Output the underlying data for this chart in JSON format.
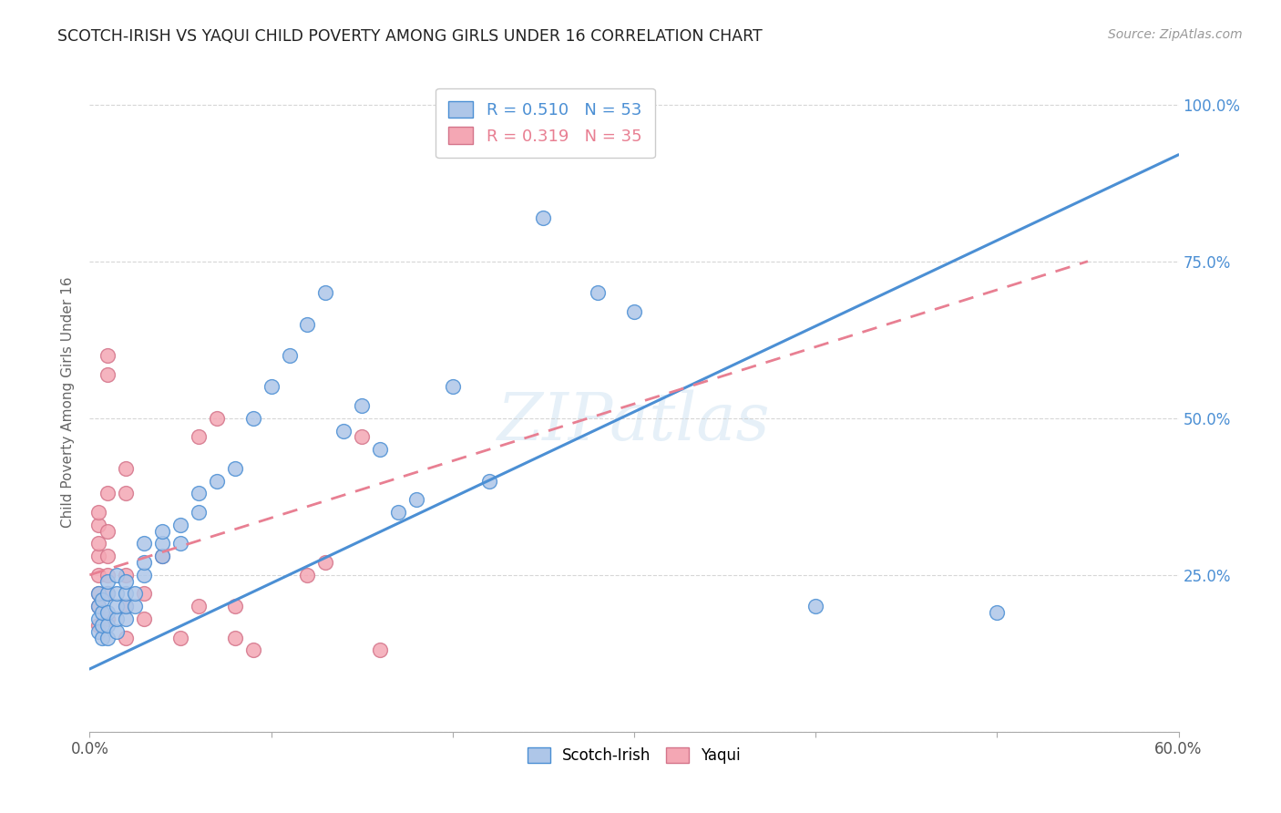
{
  "title": "SCOTCH-IRISH VS YAQUI CHILD POVERTY AMONG GIRLS UNDER 16 CORRELATION CHART",
  "source": "Source: ZipAtlas.com",
  "ylabel": "Child Poverty Among Girls Under 16",
  "xlim": [
    0.0,
    0.6
  ],
  "ylim": [
    0.0,
    1.05
  ],
  "xticks": [
    0.0,
    0.1,
    0.2,
    0.3,
    0.4,
    0.5,
    0.6
  ],
  "yticks": [
    0.0,
    0.25,
    0.5,
    0.75,
    1.0
  ],
  "watermark": "ZIPatlas",
  "scotch_irish_color": "#aec6e8",
  "yaqui_color": "#f4a7b4",
  "scotch_irish_line_color": "#4b8fd4",
  "yaqui_line_color": "#e87f92",
  "scotch_irish_R": 0.51,
  "scotch_irish_N": 53,
  "yaqui_R": 0.319,
  "yaqui_N": 35,
  "si_line": [
    0.0,
    0.1,
    0.6,
    0.92
  ],
  "yq_line": [
    0.0,
    0.25,
    0.55,
    0.75
  ],
  "scotch_irish_points": [
    [
      0.005,
      0.18
    ],
    [
      0.005,
      0.16
    ],
    [
      0.005,
      0.2
    ],
    [
      0.005,
      0.22
    ],
    [
      0.007,
      0.15
    ],
    [
      0.007,
      0.17
    ],
    [
      0.007,
      0.19
    ],
    [
      0.007,
      0.21
    ],
    [
      0.01,
      0.15
    ],
    [
      0.01,
      0.17
    ],
    [
      0.01,
      0.19
    ],
    [
      0.01,
      0.22
    ],
    [
      0.01,
      0.24
    ],
    [
      0.015,
      0.16
    ],
    [
      0.015,
      0.18
    ],
    [
      0.015,
      0.2
    ],
    [
      0.015,
      0.22
    ],
    [
      0.015,
      0.25
    ],
    [
      0.02,
      0.18
    ],
    [
      0.02,
      0.2
    ],
    [
      0.02,
      0.22
    ],
    [
      0.02,
      0.24
    ],
    [
      0.025,
      0.2
    ],
    [
      0.025,
      0.22
    ],
    [
      0.03,
      0.25
    ],
    [
      0.03,
      0.27
    ],
    [
      0.03,
      0.3
    ],
    [
      0.04,
      0.28
    ],
    [
      0.04,
      0.3
    ],
    [
      0.04,
      0.32
    ],
    [
      0.05,
      0.3
    ],
    [
      0.05,
      0.33
    ],
    [
      0.06,
      0.35
    ],
    [
      0.06,
      0.38
    ],
    [
      0.07,
      0.4
    ],
    [
      0.08,
      0.42
    ],
    [
      0.09,
      0.5
    ],
    [
      0.1,
      0.55
    ],
    [
      0.11,
      0.6
    ],
    [
      0.12,
      0.65
    ],
    [
      0.13,
      0.7
    ],
    [
      0.14,
      0.48
    ],
    [
      0.15,
      0.52
    ],
    [
      0.16,
      0.45
    ],
    [
      0.17,
      0.35
    ],
    [
      0.18,
      0.37
    ],
    [
      0.2,
      0.55
    ],
    [
      0.22,
      0.4
    ],
    [
      0.25,
      0.82
    ],
    [
      0.28,
      0.7
    ],
    [
      0.3,
      0.67
    ],
    [
      0.4,
      0.2
    ],
    [
      0.5,
      0.19
    ]
  ],
  "yaqui_points": [
    [
      0.005,
      0.17
    ],
    [
      0.005,
      0.2
    ],
    [
      0.005,
      0.22
    ],
    [
      0.005,
      0.25
    ],
    [
      0.005,
      0.28
    ],
    [
      0.005,
      0.3
    ],
    [
      0.005,
      0.33
    ],
    [
      0.005,
      0.35
    ],
    [
      0.01,
      0.18
    ],
    [
      0.01,
      0.22
    ],
    [
      0.01,
      0.25
    ],
    [
      0.01,
      0.28
    ],
    [
      0.01,
      0.32
    ],
    [
      0.01,
      0.38
    ],
    [
      0.01,
      0.57
    ],
    [
      0.01,
      0.6
    ],
    [
      0.02,
      0.15
    ],
    [
      0.02,
      0.2
    ],
    [
      0.02,
      0.25
    ],
    [
      0.02,
      0.38
    ],
    [
      0.02,
      0.42
    ],
    [
      0.03,
      0.18
    ],
    [
      0.03,
      0.22
    ],
    [
      0.04,
      0.28
    ],
    [
      0.05,
      0.15
    ],
    [
      0.06,
      0.2
    ],
    [
      0.06,
      0.47
    ],
    [
      0.07,
      0.5
    ],
    [
      0.08,
      0.15
    ],
    [
      0.08,
      0.2
    ],
    [
      0.09,
      0.13
    ],
    [
      0.12,
      0.25
    ],
    [
      0.13,
      0.27
    ],
    [
      0.15,
      0.47
    ],
    [
      0.16,
      0.13
    ]
  ]
}
